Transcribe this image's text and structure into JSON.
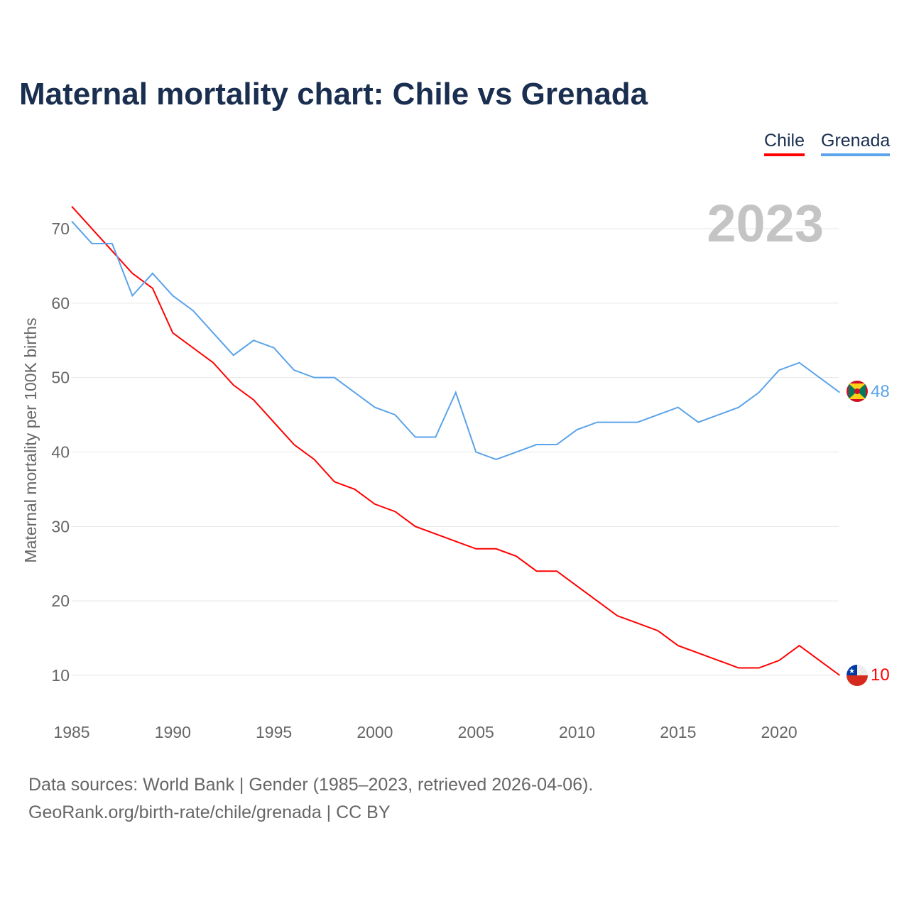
{
  "title": "Maternal mortality chart: Chile vs Grenada",
  "footer": {
    "line1": "Data sources: World Bank | Gender (1985–2023, retrieved 2026-04-06).",
    "line2": "GeoRank.org/birth-rate/chile/grenada | CC BY"
  },
  "chart_data": {
    "type": "line",
    "title": "Maternal mortality chart: Chile vs Grenada",
    "ylabel": "Maternal mortality per 100K births",
    "xlabel": "",
    "year_label": "2023",
    "xlim": [
      1985,
      2023
    ],
    "ylim": [
      5,
      75
    ],
    "x_ticks": [
      1985,
      1990,
      1995,
      2000,
      2005,
      2010,
      2015,
      2020
    ],
    "y_ticks": [
      10,
      20,
      30,
      40,
      50,
      60,
      70
    ],
    "grid": true,
    "legend": "top-right",
    "x": [
      1985,
      1986,
      1987,
      1988,
      1989,
      1990,
      1991,
      1992,
      1993,
      1994,
      1995,
      1996,
      1997,
      1998,
      1999,
      2000,
      2001,
      2002,
      2003,
      2004,
      2005,
      2006,
      2007,
      2008,
      2009,
      2010,
      2011,
      2012,
      2013,
      2014,
      2015,
      2016,
      2017,
      2018,
      2019,
      2020,
      2021,
      2022,
      2023
    ],
    "series": [
      {
        "name": "Chile",
        "color": "#ff0000",
        "end_label": "10",
        "values": [
          73,
          70,
          67,
          64,
          62,
          56,
          54,
          52,
          49,
          47,
          44,
          41,
          39,
          36,
          35,
          33,
          32,
          30,
          29,
          28,
          27,
          27,
          26,
          24,
          24,
          22,
          20,
          18,
          17,
          16,
          14,
          13,
          12,
          11,
          11,
          12,
          14,
          12,
          10
        ]
      },
      {
        "name": "Grenada",
        "color": "#5ba3ea",
        "end_label": "48",
        "values": [
          71,
          68,
          68,
          61,
          64,
          61,
          59,
          56,
          53,
          55,
          54,
          51,
          50,
          50,
          48,
          46,
          45,
          42,
          42,
          48,
          40,
          39,
          40,
          41,
          41,
          43,
          44,
          44,
          44,
          45,
          46,
          44,
          45,
          46,
          48,
          51,
          52,
          50,
          48
        ]
      }
    ]
  }
}
